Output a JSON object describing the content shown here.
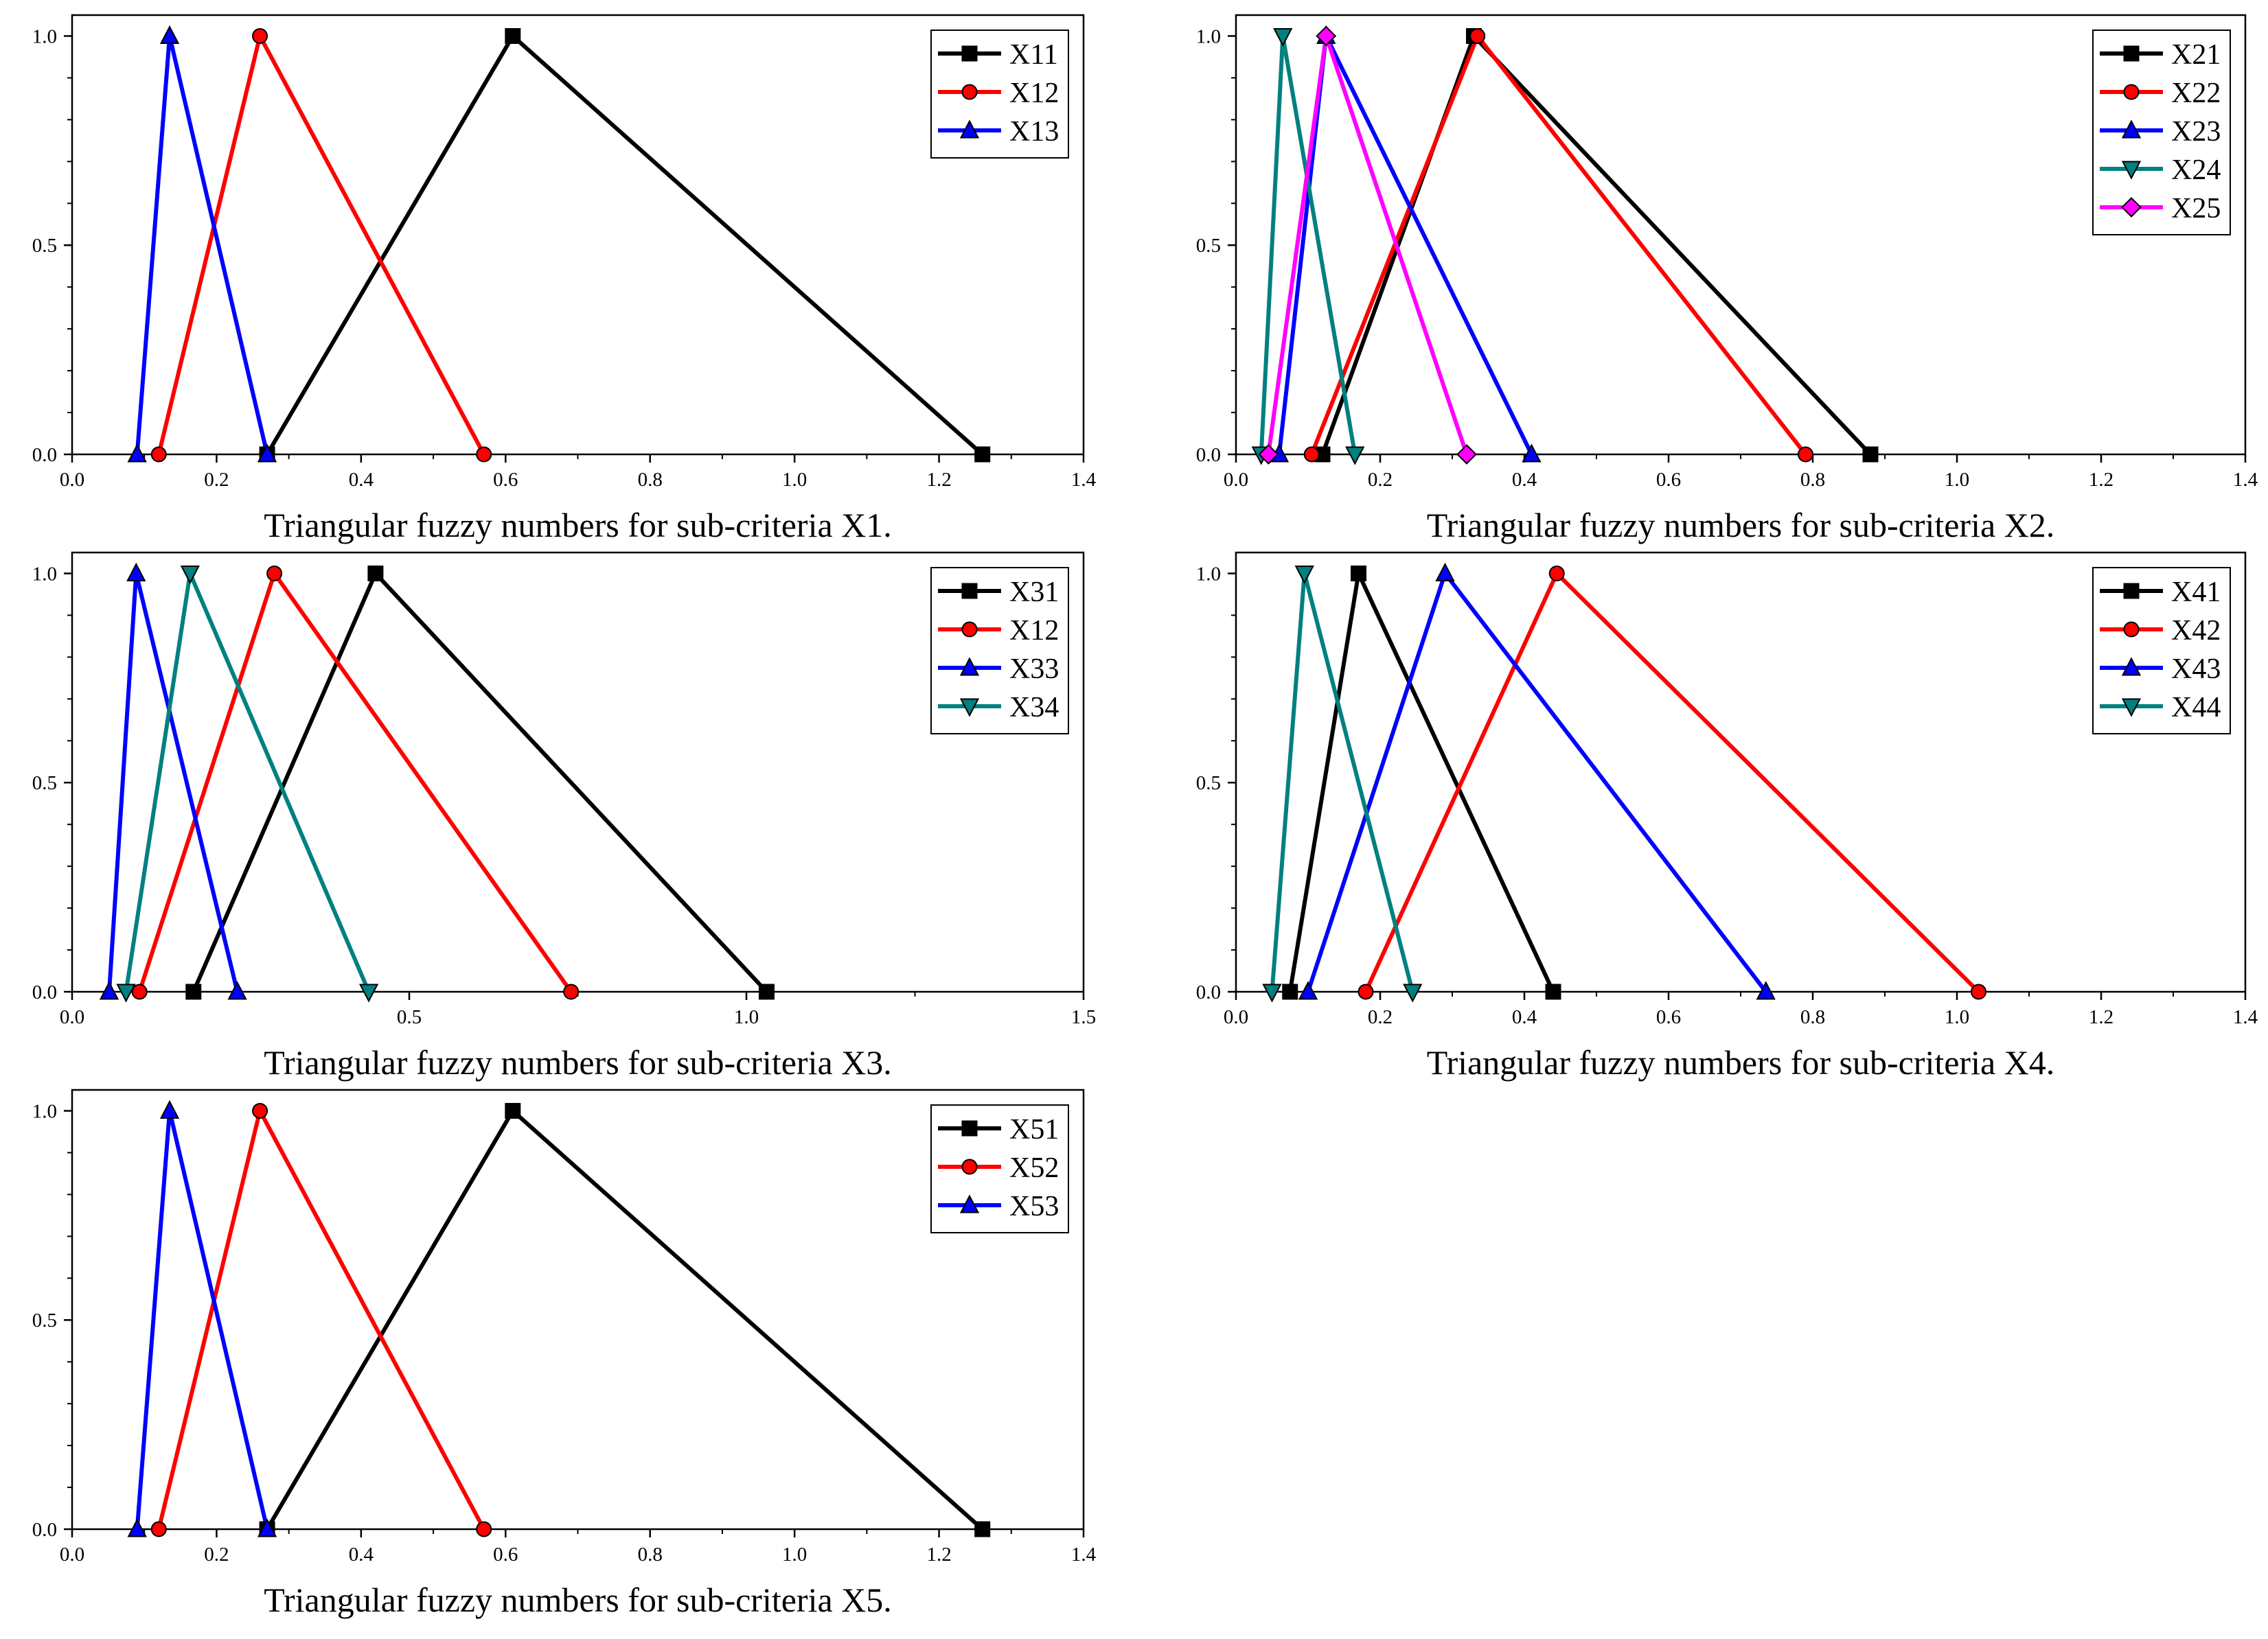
{
  "figure": {
    "colors": {
      "black": "#000000",
      "red": "#ff0000",
      "blue": "#0000ff",
      "teal": "#008080",
      "magenta": "#ff00ff"
    }
  },
  "chart_data": [
    {
      "type": "line",
      "title": "Triangular fuzzy numbers for sub-criteria X1.",
      "xlabel": "",
      "ylabel": "",
      "xlim": [
        0,
        1.4
      ],
      "ylim": [
        0,
        1.05
      ],
      "xticks": [
        "0.0",
        "0.2",
        "0.4",
        "0.6",
        "0.8",
        "1.0",
        "1.2",
        "1.4"
      ],
      "yticks": [
        "0.0",
        "0.5",
        "1.0"
      ],
      "legend": "top-right",
      "series": [
        {
          "name": "X11",
          "marker": "square",
          "color": "#000000",
          "x": [
            0.27,
            0.61,
            1.26
          ],
          "y": [
            0,
            1,
            0
          ]
        },
        {
          "name": "X12",
          "marker": "circle",
          "color": "#ff0000",
          "x": [
            0.12,
            0.26,
            0.57
          ],
          "y": [
            0,
            1,
            0
          ]
        },
        {
          "name": "X13",
          "marker": "triangle-up",
          "color": "#0000ff",
          "x": [
            0.09,
            0.135,
            0.27
          ],
          "y": [
            0,
            1,
            0
          ]
        }
      ]
    },
    {
      "type": "line",
      "title": "Triangular fuzzy numbers for sub-criteria X2.",
      "xlabel": "",
      "ylabel": "",
      "xlim": [
        0,
        1.4
      ],
      "ylim": [
        0,
        1.05
      ],
      "xticks": [
        "0.0",
        "0.2",
        "0.4",
        "0.6",
        "0.8",
        "1.0",
        "1.2",
        "1.4"
      ],
      "yticks": [
        "0.0",
        "0.5",
        "1.0"
      ],
      "legend": "top-right",
      "series": [
        {
          "name": "X21",
          "marker": "square",
          "color": "#000000",
          "x": [
            0.12,
            0.33,
            0.88
          ],
          "y": [
            0,
            1,
            0
          ]
        },
        {
          "name": "X22",
          "marker": "circle",
          "color": "#ff0000",
          "x": [
            0.105,
            0.335,
            0.79
          ],
          "y": [
            0,
            1,
            0
          ]
        },
        {
          "name": "X23",
          "marker": "triangle-up",
          "color": "#0000ff",
          "x": [
            0.06,
            0.125,
            0.41
          ],
          "y": [
            0,
            1,
            0
          ]
        },
        {
          "name": "X24",
          "marker": "triangle-down",
          "color": "#008080",
          "x": [
            0.035,
            0.065,
            0.165
          ],
          "y": [
            0,
            1,
            0
          ]
        },
        {
          "name": "X25",
          "marker": "diamond",
          "color": "#ff00ff",
          "x": [
            0.045,
            0.125,
            0.32
          ],
          "y": [
            0,
            1,
            0
          ]
        }
      ]
    },
    {
      "type": "line",
      "title": "Triangular fuzzy numbers for sub-criteria X3.",
      "xlabel": "",
      "ylabel": "",
      "xlim": [
        0,
        1.5
      ],
      "ylim": [
        0,
        1.05
      ],
      "xticks": [
        "0.0",
        "0.5",
        "1.0",
        "1.5"
      ],
      "yticks": [
        "0.0",
        "0.5",
        "1.0"
      ],
      "legend": "top-right",
      "series": [
        {
          "name": "X31",
          "marker": "square",
          "color": "#000000",
          "x": [
            0.18,
            0.45,
            1.03
          ],
          "y": [
            0,
            1,
            0
          ]
        },
        {
          "name": "X12",
          "marker": "circle",
          "color": "#ff0000",
          "x": [
            0.1,
            0.3,
            0.74
          ],
          "y": [
            0,
            1,
            0
          ]
        },
        {
          "name": "X33",
          "marker": "triangle-up",
          "color": "#0000ff",
          "x": [
            0.055,
            0.095,
            0.245
          ],
          "y": [
            0,
            1,
            0
          ]
        },
        {
          "name": "X34",
          "marker": "triangle-down",
          "color": "#008080",
          "x": [
            0.08,
            0.175,
            0.44
          ],
          "y": [
            0,
            1,
            0
          ]
        }
      ]
    },
    {
      "type": "line",
      "title": "Triangular fuzzy numbers for sub-criteria X4.",
      "xlabel": "",
      "ylabel": "",
      "xlim": [
        0,
        1.4
      ],
      "ylim": [
        0,
        1.05
      ],
      "xticks": [
        "0.0",
        "0.2",
        "0.4",
        "0.6",
        "0.8",
        "1.0",
        "1.2",
        "1.4"
      ],
      "yticks": [
        "0.0",
        "0.5",
        "1.0"
      ],
      "legend": "top-right",
      "series": [
        {
          "name": "X41",
          "marker": "square",
          "color": "#000000",
          "x": [
            0.075,
            0.17,
            0.44
          ],
          "y": [
            0,
            1,
            0
          ]
        },
        {
          "name": "X42",
          "marker": "circle",
          "color": "#ff0000",
          "x": [
            0.18,
            0.445,
            1.03
          ],
          "y": [
            0,
            1,
            0
          ]
        },
        {
          "name": "X43",
          "marker": "triangle-up",
          "color": "#0000ff",
          "x": [
            0.1,
            0.29,
            0.735
          ],
          "y": [
            0,
            1,
            0
          ]
        },
        {
          "name": "X44",
          "marker": "triangle-down",
          "color": "#008080",
          "x": [
            0.05,
            0.095,
            0.245
          ],
          "y": [
            0,
            1,
            0
          ]
        }
      ]
    },
    {
      "type": "line",
      "title": "Triangular fuzzy numbers for sub-criteria X5.",
      "xlabel": "",
      "ylabel": "",
      "xlim": [
        0,
        1.4
      ],
      "ylim": [
        0,
        1.05
      ],
      "xticks": [
        "0.0",
        "0.2",
        "0.4",
        "0.6",
        "0.8",
        "1.0",
        "1.2",
        "1.4"
      ],
      "yticks": [
        "0.0",
        "0.5",
        "1.0"
      ],
      "legend": "top-right",
      "series": [
        {
          "name": "X51",
          "marker": "square",
          "color": "#000000",
          "x": [
            0.27,
            0.61,
            1.26
          ],
          "y": [
            0,
            1,
            0
          ]
        },
        {
          "name": "X52",
          "marker": "circle",
          "color": "#ff0000",
          "x": [
            0.12,
            0.26,
            0.57
          ],
          "y": [
            0,
            1,
            0
          ]
        },
        {
          "name": "X53",
          "marker": "triangle-up",
          "color": "#0000ff",
          "x": [
            0.09,
            0.135,
            0.27
          ],
          "y": [
            0,
            1,
            0
          ]
        }
      ]
    }
  ]
}
